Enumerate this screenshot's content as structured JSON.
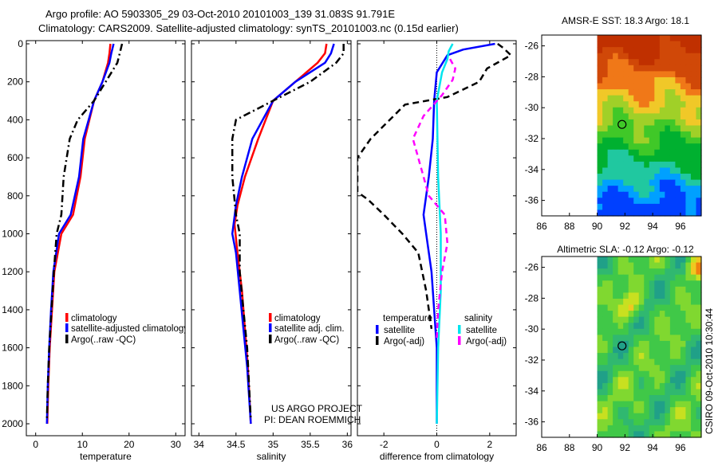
{
  "header": {
    "title_line1": "Argo profile: AO 5903305_29 03-Oct-2010 20101003_139 31.083S 91.791E",
    "title_line2": "Climatology: CARS2009. Satellite-adjusted climatology: synTS_20101003.nc (0.15d earlier)"
  },
  "side_label": "CSIRO 09-Oct-2010 10:30:44",
  "colors": {
    "climatology": "#ff0000",
    "satellite": "#0000ff",
    "argo": "#000000",
    "sal_satellite": "#00e5ee",
    "sal_argo": "#ff00ff"
  },
  "chart_data": [
    {
      "type": "line",
      "id": "temperature",
      "xlabel": "temperature",
      "xlim": [
        -2,
        32
      ],
      "ylim": [
        0,
        2050
      ],
      "y_reversed": true,
      "xticks": [
        0,
        10,
        20,
        30
      ],
      "yticks": [
        0,
        200,
        400,
        600,
        800,
        1000,
        1200,
        1400,
        1600,
        1800,
        2000
      ],
      "legend": [
        "climatology",
        "satellite-adjusted climatology",
        "Argo(..raw -QC)"
      ],
      "series": [
        {
          "name": "climatology",
          "color": "#ff0000",
          "dash": "",
          "points": [
            [
              16,
              0
            ],
            [
              15.8,
              50
            ],
            [
              15.5,
              100
            ],
            [
              14.3,
              200
            ],
            [
              12.5,
              300
            ],
            [
              10.5,
              500
            ],
            [
              9.6,
              700
            ],
            [
              8,
              900
            ],
            [
              5.5,
              1000
            ],
            [
              4,
              1200
            ],
            [
              3.5,
              1400
            ],
            [
              3,
              1600
            ],
            [
              2.7,
              1800
            ],
            [
              2.5,
              2000
            ]
          ]
        },
        {
          "name": "satellite-adjusted climatology",
          "color": "#0000ff",
          "dash": "",
          "points": [
            [
              16.7,
              0
            ],
            [
              16.2,
              50
            ],
            [
              15.8,
              100
            ],
            [
              14.3,
              200
            ],
            [
              12.5,
              300
            ],
            [
              10.2,
              500
            ],
            [
              9.3,
              700
            ],
            [
              7.5,
              900
            ],
            [
              5,
              1000
            ],
            [
              3.8,
              1200
            ],
            [
              3.3,
              1400
            ],
            [
              2.9,
              1600
            ],
            [
              2.6,
              1800
            ],
            [
              2.4,
              2000
            ]
          ]
        },
        {
          "name": "Argo(..raw -QC)",
          "color": "#000000",
          "dash": "9,4,2,4",
          "points": [
            [
              18.5,
              0
            ],
            [
              18,
              50
            ],
            [
              17.5,
              100
            ],
            [
              15,
              200
            ],
            [
              12.5,
              300
            ],
            [
              9,
              400
            ],
            [
              7.3,
              500
            ],
            [
              6,
              700
            ],
            [
              5.5,
              900
            ],
            [
              4.5,
              1000
            ],
            [
              3.9,
              1200
            ],
            [
              3.4,
              1400
            ],
            [
              2.9,
              1600
            ],
            [
              2.6,
              1800
            ],
            [
              2.4,
              1980
            ]
          ]
        }
      ]
    },
    {
      "type": "line",
      "id": "salinity",
      "xlabel": "salinity",
      "xlim": [
        33.9,
        36.05
      ],
      "ylim": [
        0,
        2050
      ],
      "y_reversed": true,
      "xticks": [
        34,
        34.5,
        35,
        35.5,
        36
      ],
      "yticks": [
        0,
        200,
        400,
        600,
        800,
        1000,
        1200,
        1400,
        1600,
        1800,
        2000
      ],
      "legend": [
        "climatology",
        "satellite adj. clim.",
        "Argo(..raw -QC)"
      ],
      "series": [
        {
          "name": "climatology",
          "color": "#ff0000",
          "dash": "",
          "points": [
            [
              35.72,
              0
            ],
            [
              35.7,
              50
            ],
            [
              35.6,
              100
            ],
            [
              35.3,
              200
            ],
            [
              35,
              300
            ],
            [
              34.8,
              500
            ],
            [
              34.62,
              700
            ],
            [
              34.52,
              850
            ],
            [
              34.48,
              950
            ],
            [
              34.52,
              1100
            ],
            [
              34.58,
              1300
            ],
            [
              34.62,
              1500
            ],
            [
              34.66,
              1700
            ],
            [
              34.7,
              2000
            ]
          ]
        },
        {
          "name": "satellite adj. clim.",
          "color": "#0000ff",
          "dash": "",
          "points": [
            [
              35.82,
              0
            ],
            [
              35.78,
              50
            ],
            [
              35.7,
              100
            ],
            [
              35.3,
              200
            ],
            [
              35,
              300
            ],
            [
              34.72,
              500
            ],
            [
              34.58,
              700
            ],
            [
              34.5,
              850
            ],
            [
              34.45,
              1000
            ],
            [
              34.5,
              1100
            ],
            [
              34.55,
              1300
            ],
            [
              34.6,
              1500
            ],
            [
              34.65,
              1700
            ],
            [
              34.7,
              2000
            ]
          ]
        },
        {
          "name": "Argo(..raw -QC)",
          "color": "#000000",
          "dash": "9,4,2,4",
          "points": [
            [
              35.95,
              0
            ],
            [
              35.95,
              50
            ],
            [
              35.85,
              100
            ],
            [
              35.5,
              200
            ],
            [
              35,
              300
            ],
            [
              34.5,
              400
            ],
            [
              34.45,
              500
            ],
            [
              34.45,
              700
            ],
            [
              34.5,
              900
            ],
            [
              34.55,
              1000
            ],
            [
              34.55,
              1200
            ],
            [
              34.6,
              1400
            ],
            [
              34.65,
              1600
            ],
            [
              34.7,
              1980
            ]
          ]
        }
      ]
    },
    {
      "type": "line",
      "id": "difference",
      "xlabel": "difference from climatology",
      "xlim": [
        -3,
        3
      ],
      "ylim": [
        0,
        2050
      ],
      "y_reversed": true,
      "xticks": [
        -2,
        0,
        2
      ],
      "yticks": [
        0,
        200,
        400,
        600,
        800,
        1000,
        1200,
        1400,
        1600,
        1800,
        2000
      ],
      "legend_temperature_title": "temperature",
      "legend_salinity_title": "salinity",
      "legend": [
        "satellite",
        "Argo(-adj)",
        "satellite",
        "Argo(-adj)"
      ],
      "series": [
        {
          "name": "temperature satellite",
          "color": "#0000ff",
          "dash": "",
          "points": [
            [
              2.2,
              0
            ],
            [
              1,
              30
            ],
            [
              0.4,
              60
            ],
            [
              0,
              150
            ],
            [
              -0.1,
              300
            ],
            [
              -0.15,
              500
            ],
            [
              -0.3,
              700
            ],
            [
              -0.5,
              900
            ],
            [
              -0.4,
              1000
            ],
            [
              -0.2,
              1200
            ],
            [
              -0.1,
              1400
            ],
            [
              0,
              1600
            ],
            [
              0,
              1800
            ],
            [
              0,
              2000
            ]
          ]
        },
        {
          "name": "temperature Argo(-adj)",
          "color": "#000000",
          "dash": "8,5",
          "points": [
            [
              2.3,
              0
            ],
            [
              2.5,
              20
            ],
            [
              2.8,
              60
            ],
            [
              1.9,
              130
            ],
            [
              1.6,
              200
            ],
            [
              0.4,
              280
            ],
            [
              -1.2,
              320
            ],
            [
              -2.5,
              500
            ],
            [
              -3,
              600
            ],
            [
              -3,
              780
            ],
            [
              -2.6,
              820
            ],
            [
              -2,
              900
            ],
            [
              -1.3,
              1000
            ],
            [
              -0.7,
              1100
            ],
            [
              -0.4,
              1300
            ],
            [
              -0.2,
              1500
            ]
          ]
        },
        {
          "name": "salinity satellite",
          "color": "#00e5ee",
          "dash": "",
          "points": [
            [
              0.6,
              0
            ],
            [
              0.45,
              40
            ],
            [
              0.4,
              80
            ],
            [
              0.2,
              150
            ],
            [
              0,
              300
            ],
            [
              0.05,
              700
            ],
            [
              0.15,
              1000
            ],
            [
              0.15,
              1300
            ],
            [
              0.05,
              1600
            ],
            [
              0,
              2000
            ]
          ]
        },
        {
          "name": "salinity Argo(-adj)",
          "color": "#ff00ff",
          "dash": "7,5",
          "points": [
            [
              0.5,
              80
            ],
            [
              0.7,
              130
            ],
            [
              0.6,
              190
            ],
            [
              0.2,
              270
            ],
            [
              -0.5,
              380
            ],
            [
              -0.9,
              500
            ],
            [
              -0.5,
              700
            ],
            [
              -0.3,
              800
            ],
            [
              0.3,
              900
            ],
            [
              0.4,
              1050
            ],
            [
              0.2,
              1200
            ],
            [
              0.05,
              1400
            ],
            [
              0,
              1550
            ]
          ]
        }
      ]
    },
    {
      "type": "heatmap",
      "id": "amsr-sst",
      "title": "AMSR-E SST: 18.3 Argo: 18.1",
      "xlim": [
        86,
        97.5
      ],
      "ylim": [
        -37,
        -25.3
      ],
      "xticks": [
        86,
        88,
        90,
        92,
        94,
        96
      ],
      "yticks": [
        -26,
        -28,
        -30,
        -32,
        -34,
        -36
      ],
      "data_x_range": [
        90,
        97.5
      ],
      "argo_position": {
        "lon": 91.791,
        "lat": -31.083
      },
      "colorscale": [
        "#0040ff",
        "#00a0ff",
        "#20c8a0",
        "#00b030",
        "#40c828",
        "#a0d028",
        "#f0c828",
        "#f07818",
        "#d04808",
        "#c03000"
      ]
    },
    {
      "type": "heatmap",
      "id": "altimetric-sla",
      "title": "Altimetric SLA: -0.12 Argo: -0.12",
      "xlim": [
        86,
        97.5
      ],
      "ylim": [
        -37,
        -25.3
      ],
      "xticks": [
        86,
        88,
        90,
        92,
        94,
        96
      ],
      "yticks": [
        -26,
        -28,
        -30,
        -32,
        -34,
        -36
      ],
      "data_x_range": [
        90,
        97.5
      ],
      "argo_position": {
        "lon": 91.791,
        "lat": -31.083
      },
      "colorscale": [
        "#20a088",
        "#30b870",
        "#40c848",
        "#80d830",
        "#c8e020",
        "#f0c820",
        "#f08010"
      ]
    }
  ],
  "annotation": {
    "line1": "US ARGO PROJECT",
    "line2": "PI: DEAN ROEMMICH"
  }
}
